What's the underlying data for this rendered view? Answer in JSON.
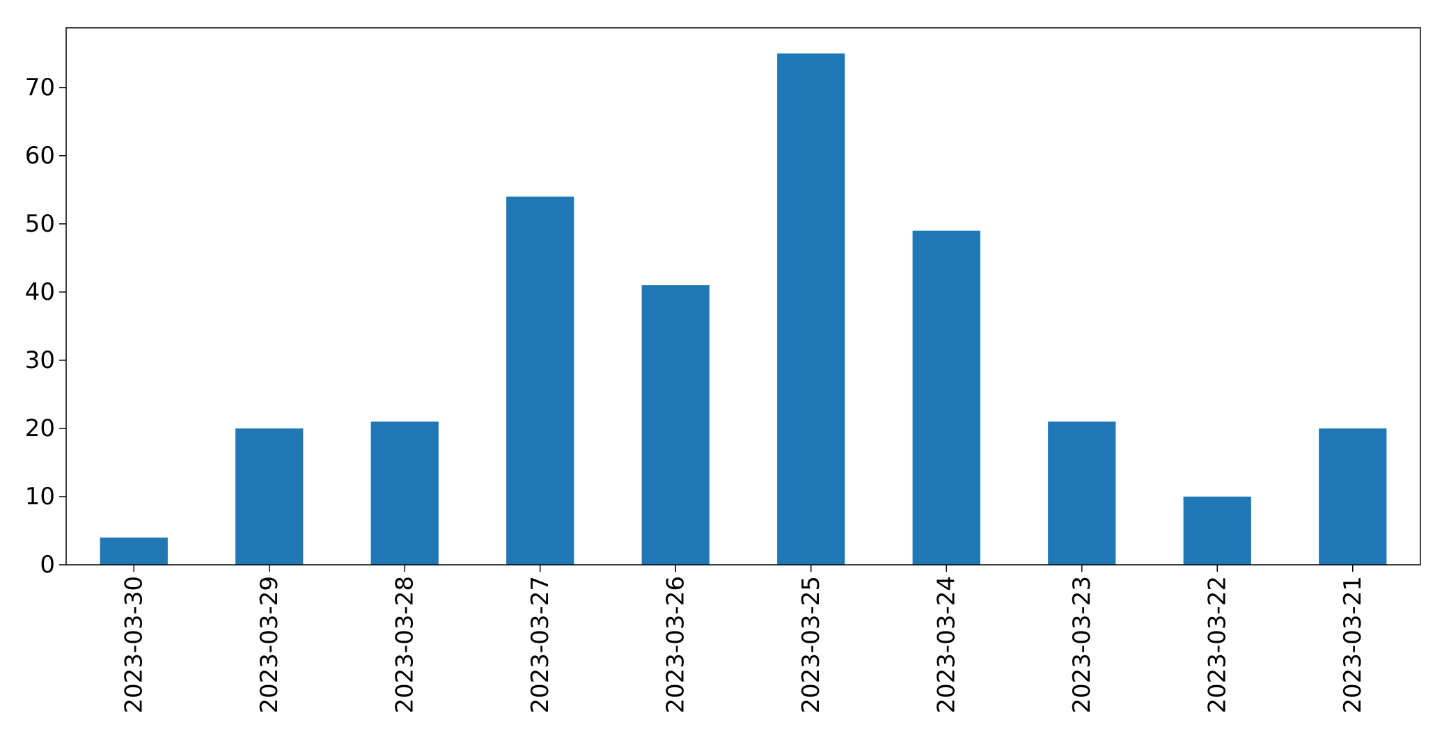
{
  "chart_data": {
    "type": "bar",
    "title": "",
    "xlabel": "",
    "ylabel": "",
    "categories": [
      "2023-03-30",
      "2023-03-29",
      "2023-03-28",
      "2023-03-27",
      "2023-03-26",
      "2023-03-25",
      "2023-03-24",
      "2023-03-23",
      "2023-03-22",
      "2023-03-21"
    ],
    "values": [
      4,
      20,
      21,
      54,
      41,
      75,
      49,
      21,
      10,
      20
    ],
    "ylim": [
      0,
      78.75
    ],
    "yticks": [
      0,
      10,
      20,
      30,
      40,
      50,
      60,
      70
    ],
    "ytick_labels": [
      "0",
      "10",
      "20",
      "30",
      "40",
      "50",
      "60",
      "70"
    ],
    "bar_color": "#1f77b4",
    "grid": false,
    "legend": "none"
  }
}
